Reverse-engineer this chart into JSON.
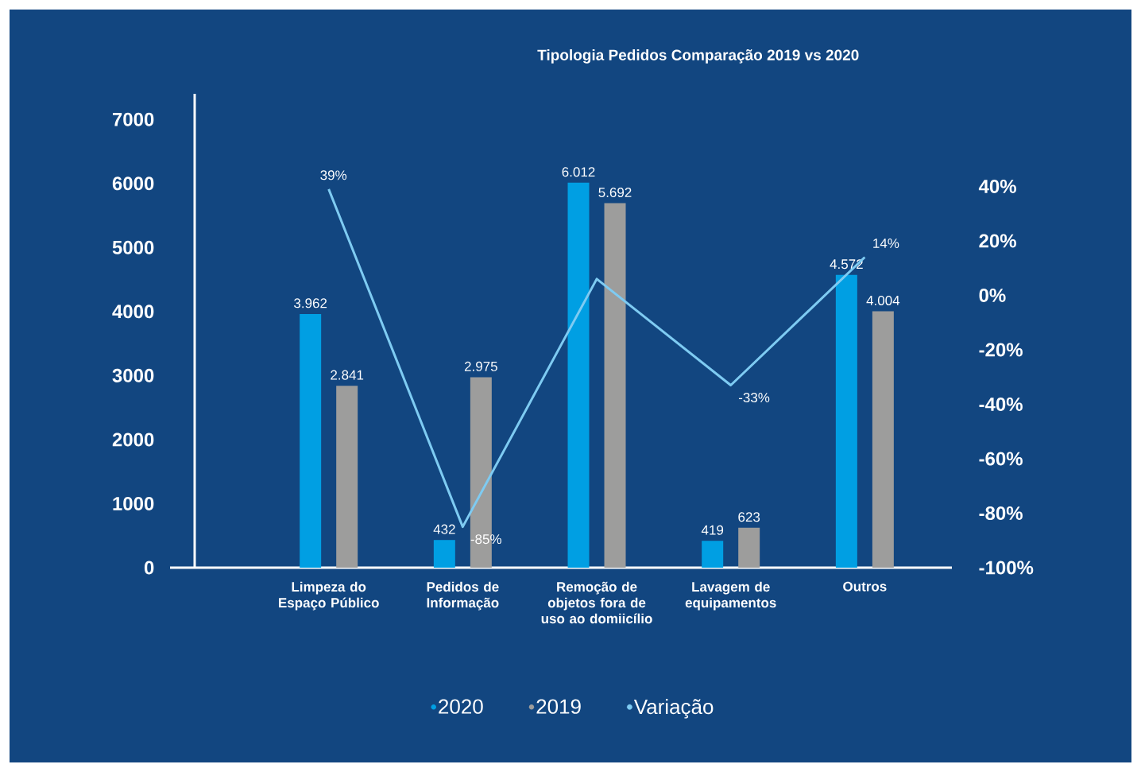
{
  "chart_data": {
    "type": "bar",
    "title": "Tipologia Pedidos Comparação 2019 vs 2020",
    "categories": [
      "Limpeza do Espaço Público",
      "Pedidos de Informação",
      "Remoção de objetos fora de uso ao domiicílio",
      "Lavagem de equipamentos",
      "Outros"
    ],
    "series": [
      {
        "name": "2020",
        "color": "#009fe3",
        "values": [
          3962,
          432,
          6012,
          419,
          4572
        ],
        "value_labels": [
          "3.962",
          "432",
          "6.012",
          "419",
          "4.572"
        ]
      },
      {
        "name": "2019",
        "color": "#9d9d9c",
        "values": [
          2841,
          2975,
          5692,
          623,
          4004
        ],
        "value_labels": [
          "2.841",
          "2.975",
          "5.692",
          "623",
          "4.004"
        ]
      },
      {
        "name": "Variação",
        "type": "line",
        "axis": "y2",
        "color": "#7ecbf2",
        "values": [
          39,
          -85,
          6,
          -33,
          14
        ],
        "value_labels": [
          "39%",
          "-85%",
          null,
          "-33%",
          "14%"
        ]
      }
    ],
    "ylim": [
      0,
      7400
    ],
    "yticks": [
      0,
      1000,
      2000,
      3000,
      4000,
      5000,
      6000,
      7000
    ],
    "y2lim": [
      -100,
      74
    ],
    "y2ticks": [
      {
        "value": -100,
        "label": "-100%"
      },
      {
        "value": -80,
        "label": "-80%"
      },
      {
        "value": -60,
        "label": "-60%"
      },
      {
        "value": -40,
        "label": "-40%"
      },
      {
        "value": -20,
        "label": "-20%"
      },
      {
        "value": 0,
        "label": "0%"
      },
      {
        "value": 20,
        "label": "20%"
      },
      {
        "value": 40,
        "label": "40%"
      }
    ],
    "grid": false,
    "legend": "bottom"
  }
}
